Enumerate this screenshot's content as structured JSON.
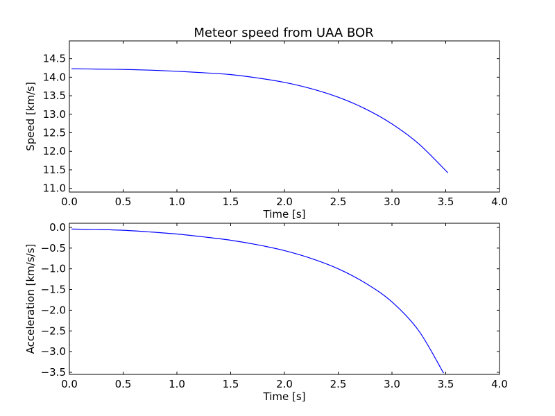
{
  "chart_data": [
    {
      "type": "line",
      "title": "Meteor speed from  UAA BOR",
      "xlabel": "Time [s]",
      "ylabel": "Speed [km/s]",
      "xlim": [
        0.0,
        4.0
      ],
      "ylim": [
        10.9,
        14.98
      ],
      "xticks": [
        "0.0",
        "0.5",
        "1.0",
        "1.5",
        "2.0",
        "2.5",
        "3.0",
        "3.5",
        "4.0"
      ],
      "yticks": [
        "11.0",
        "11.5",
        "12.0",
        "12.5",
        "13.0",
        "13.5",
        "14.0",
        "14.5"
      ],
      "grid": false,
      "legend": "none",
      "series": [
        {
          "color": "#0000ff",
          "x": [
            0.02,
            0.25,
            0.5,
            0.75,
            1.0,
            1.25,
            1.5,
            1.75,
            2.0,
            2.25,
            2.5,
            2.75,
            3.0,
            3.25,
            3.52
          ],
          "y": [
            14.23,
            14.22,
            14.21,
            14.19,
            14.16,
            14.12,
            14.07,
            13.98,
            13.86,
            13.69,
            13.46,
            13.15,
            12.74,
            12.2,
            11.42
          ]
        }
      ]
    },
    {
      "type": "line",
      "title": "",
      "xlabel": "Time [s]",
      "ylabel": "Acceleration [km/s/s]",
      "xlim": [
        0.0,
        4.0
      ],
      "ylim": [
        -3.55,
        0.1
      ],
      "xticks": [
        "0.0",
        "0.5",
        "1.0",
        "1.5",
        "2.0",
        "2.5",
        "3.0",
        "3.5",
        "4.0"
      ],
      "yticks": [
        "0.0",
        "−0.5",
        "−1.0",
        "−1.5",
        "−2.0",
        "−2.5",
        "−3.0",
        "−3.5"
      ],
      "grid": false,
      "legend": "none",
      "series": [
        {
          "color": "#0000ff",
          "x": [
            0.02,
            0.25,
            0.5,
            0.75,
            1.0,
            1.25,
            1.5,
            1.75,
            2.0,
            2.25,
            2.5,
            2.75,
            3.0,
            3.25,
            3.48
          ],
          "y": [
            -0.04,
            -0.05,
            -0.07,
            -0.11,
            -0.16,
            -0.23,
            -0.31,
            -0.42,
            -0.56,
            -0.75,
            -1.0,
            -1.34,
            -1.8,
            -2.5,
            -3.52
          ]
        }
      ]
    }
  ]
}
